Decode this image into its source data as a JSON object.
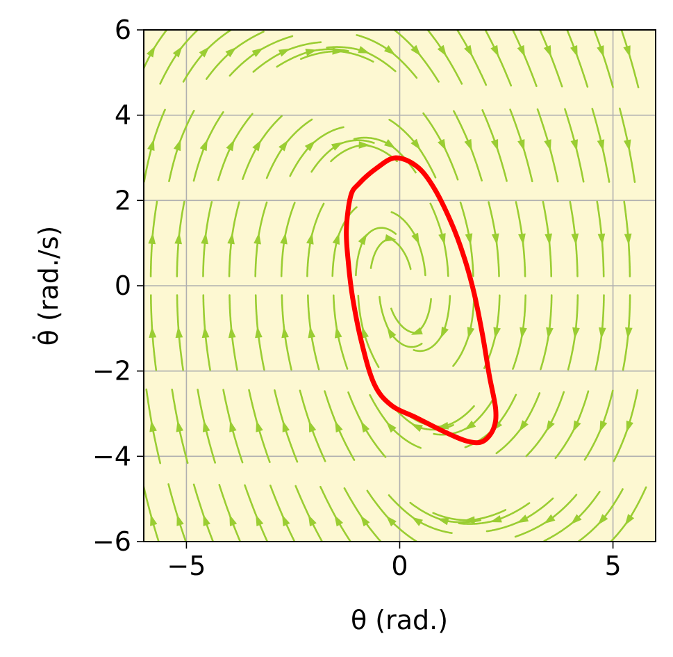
{
  "chart_data": {
    "type": "streamplot",
    "xlabel": "θ (rad.)",
    "ylabel": "θ̇ (rad./s)",
    "xlim": [
      -6,
      6
    ],
    "ylim": [
      -6,
      6
    ],
    "xticks": [
      -5,
      0,
      5
    ],
    "yticks": [
      -6,
      -4,
      -2,
      0,
      2,
      4,
      6
    ],
    "xtick_labels": [
      "−5",
      "0",
      "5"
    ],
    "ytick_labels": [
      "−6",
      "−4",
      "−2",
      "0",
      "2",
      "4",
      "6"
    ],
    "grid": true,
    "colors": {
      "background": "#fdf8d2",
      "streamlines": "#9acd32",
      "limit_cycle": "#ff0000",
      "grid": "#b0b0b0"
    },
    "limit_cycle": {
      "points": [
        [
          -0.1,
          3.0
        ],
        [
          0.4,
          2.8
        ],
        [
          0.8,
          2.3
        ],
        [
          1.2,
          1.5
        ],
        [
          1.5,
          0.7
        ],
        [
          1.75,
          -0.2
        ],
        [
          1.95,
          -1.2
        ],
        [
          2.1,
          -2.1
        ],
        [
          2.25,
          -2.9
        ],
        [
          2.2,
          -3.35
        ],
        [
          1.95,
          -3.65
        ],
        [
          1.6,
          -3.65
        ],
        [
          1.1,
          -3.45
        ],
        [
          0.4,
          -3.1
        ],
        [
          -0.2,
          -2.8
        ],
        [
          -0.6,
          -2.3
        ],
        [
          -0.9,
          -1.3
        ],
        [
          -1.1,
          -0.3
        ],
        [
          -1.2,
          0.5
        ],
        [
          -1.25,
          1.3
        ],
        [
          -1.15,
          2.1
        ],
        [
          -0.95,
          2.4
        ],
        [
          -0.55,
          2.75
        ],
        [
          -0.1,
          3.0
        ]
      ]
    }
  }
}
